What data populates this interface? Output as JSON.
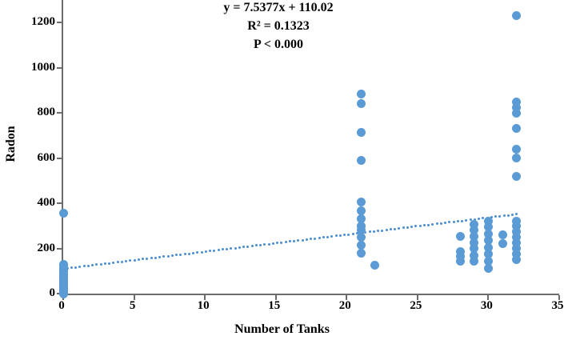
{
  "chart_data": {
    "type": "scatter",
    "title": "",
    "xlabel": "Number of Tanks",
    "ylabel": "Radon",
    "xlim": [
      0,
      35
    ],
    "ylim": [
      0,
      1300
    ],
    "xticks": [
      0,
      5,
      10,
      15,
      20,
      25,
      30,
      35
    ],
    "yticks": [
      0,
      200,
      400,
      600,
      800,
      1000,
      1200
    ],
    "grid": false,
    "legend": "none",
    "point_color": "#5b9bd5",
    "axis_color": "#6b6b6b",
    "annotation": {
      "equation": "y = 7.5377x + 110.02",
      "r_squared": "R² = 0.1323",
      "p_value": "P < 0.000"
    },
    "trendline": {
      "slope": 7.5377,
      "intercept": 110.02,
      "x_start": 0,
      "x_end": 32,
      "style": "dotted",
      "color": "#4a8fd3"
    },
    "points": [
      [
        0,
        0
      ],
      [
        0,
        4
      ],
      [
        0,
        8
      ],
      [
        0,
        12
      ],
      [
        0,
        16
      ],
      [
        0,
        20
      ],
      [
        0,
        24
      ],
      [
        0,
        28
      ],
      [
        0,
        32
      ],
      [
        0,
        36
      ],
      [
        0,
        40
      ],
      [
        0,
        45
      ],
      [
        0,
        50
      ],
      [
        0,
        55
      ],
      [
        0,
        60
      ],
      [
        0,
        66
      ],
      [
        0,
        72
      ],
      [
        0,
        78
      ],
      [
        0,
        85
      ],
      [
        0,
        92
      ],
      [
        0,
        100
      ],
      [
        0,
        108
      ],
      [
        0,
        116
      ],
      [
        0,
        124
      ],
      [
        0,
        130
      ],
      [
        0,
        355
      ],
      [
        21,
        885
      ],
      [
        21,
        840
      ],
      [
        21,
        715
      ],
      [
        21,
        590
      ],
      [
        21,
        405
      ],
      [
        21,
        365
      ],
      [
        21,
        330
      ],
      [
        21,
        300
      ],
      [
        21,
        280
      ],
      [
        21,
        250
      ],
      [
        21,
        215
      ],
      [
        21,
        180
      ],
      [
        22,
        125
      ],
      [
        28,
        255
      ],
      [
        28,
        185
      ],
      [
        28,
        165
      ],
      [
        28,
        145
      ],
      [
        29,
        305
      ],
      [
        29,
        280
      ],
      [
        29,
        255
      ],
      [
        29,
        225
      ],
      [
        29,
        200
      ],
      [
        29,
        170
      ],
      [
        29,
        145
      ],
      [
        30,
        320
      ],
      [
        30,
        295
      ],
      [
        30,
        265
      ],
      [
        30,
        235
      ],
      [
        30,
        205
      ],
      [
        30,
        175
      ],
      [
        30,
        145
      ],
      [
        30,
        110
      ],
      [
        31,
        260
      ],
      [
        31,
        220
      ],
      [
        32,
        1230
      ],
      [
        32,
        850
      ],
      [
        32,
        825
      ],
      [
        32,
        800
      ],
      [
        32,
        730
      ],
      [
        32,
        640
      ],
      [
        32,
        600
      ],
      [
        32,
        520
      ],
      [
        32,
        320
      ],
      [
        32,
        300
      ],
      [
        32,
        275
      ],
      [
        32,
        250
      ],
      [
        32,
        225
      ],
      [
        32,
        200
      ],
      [
        32,
        175
      ],
      [
        32,
        150
      ]
    ]
  }
}
